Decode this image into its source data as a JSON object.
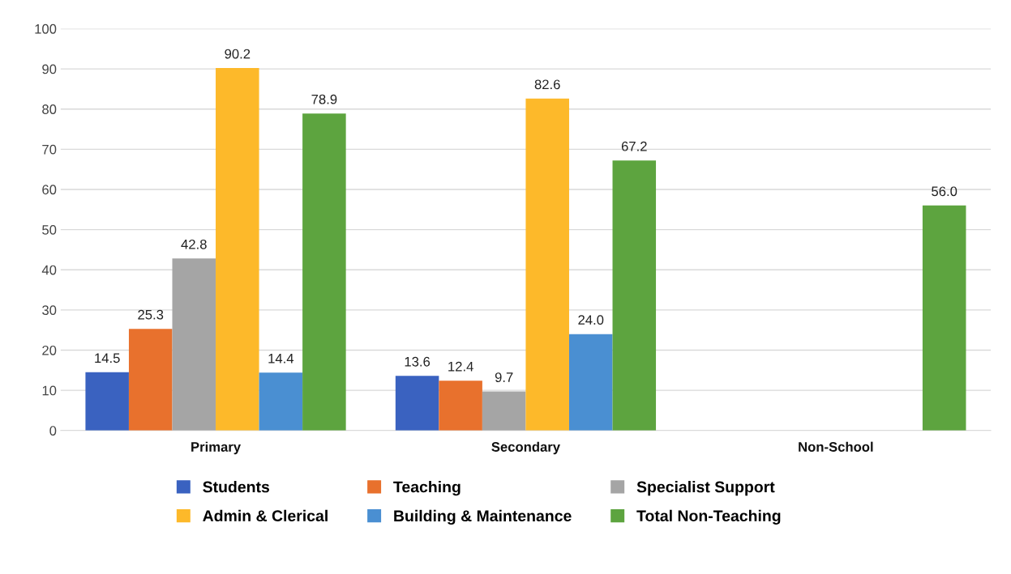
{
  "chart_data": {
    "type": "bar",
    "categories": [
      "Primary",
      "Secondary",
      "Non-School"
    ],
    "series": [
      {
        "name": "Students",
        "color": "#3a62c0",
        "values": [
          14.5,
          13.6,
          null
        ],
        "value_labels": [
          "14.5",
          "13.6",
          null
        ]
      },
      {
        "name": "Teaching",
        "color": "#e8712d",
        "values": [
          25.3,
          12.4,
          null
        ],
        "value_labels": [
          "25.3",
          "12.4",
          null
        ]
      },
      {
        "name": "Specialist Support",
        "color": "#a5a5a5",
        "values": [
          42.8,
          9.7,
          null
        ],
        "value_labels": [
          "42.8",
          "9.7",
          null
        ]
      },
      {
        "name": "Admin & Clerical",
        "color": "#fdb92a",
        "values": [
          90.2,
          82.6,
          null
        ],
        "value_labels": [
          "90.2",
          "82.6",
          null
        ]
      },
      {
        "name": "Building & Maintenance",
        "color": "#4a8fd2",
        "values": [
          14.4,
          24.0,
          null
        ],
        "value_labels": [
          "14.4",
          "24.0",
          null
        ]
      },
      {
        "name": "Total Non-Teaching",
        "color": "#5da43f",
        "values": [
          78.9,
          67.2,
          56.0
        ],
        "value_labels": [
          "78.9",
          "67.2",
          "56.0"
        ]
      }
    ],
    "ylim": [
      0,
      100
    ],
    "yticks": [
      0,
      10,
      20,
      30,
      40,
      50,
      60,
      70,
      80,
      90,
      100
    ],
    "grid": "y",
    "legend": "bottom"
  }
}
